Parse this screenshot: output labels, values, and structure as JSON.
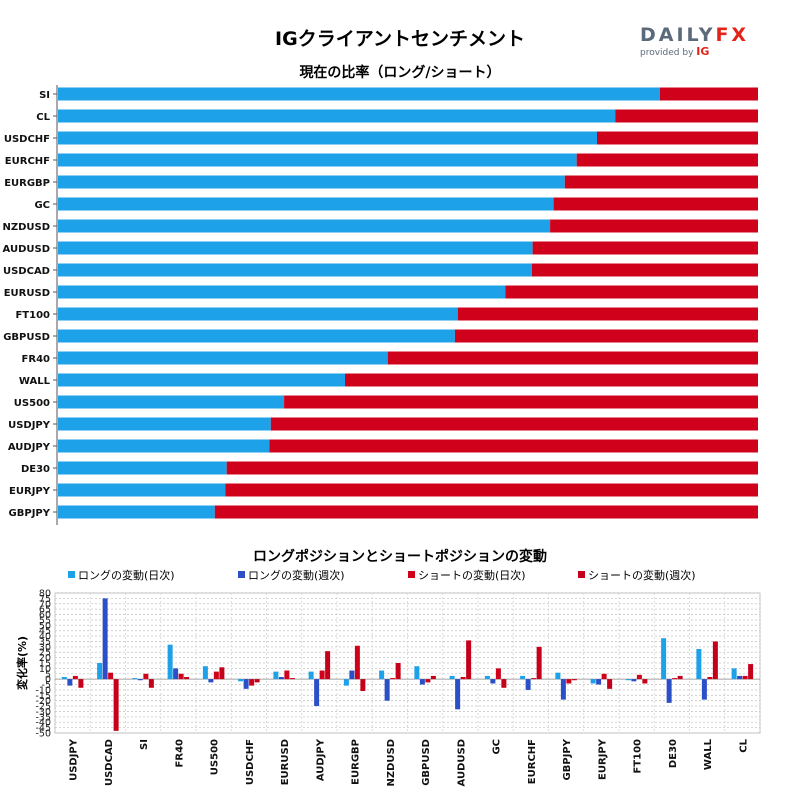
{
  "header": {
    "title": "IGクライアントセンチメント",
    "logo_word_a": "DAILY",
    "logo_word_b": "FX",
    "logo_sub": "provided by",
    "logo_brand": "IG"
  },
  "colors": {
    "long": "#1da1e8",
    "short": "#d0021b",
    "long_weekly": "#2b4fc7",
    "short_weekly": "#c4001a"
  },
  "chart_data": [
    {
      "type": "bar",
      "orientation": "horizontal-stacked",
      "title": "現在の比率（ロング/ショート）",
      "categories": [
        "SI",
        "CL",
        "USDCHF",
        "EURCHF",
        "EURGBP",
        "GC",
        "NZDUSD",
        "AUDUSD",
        "USDCAD",
        "EURUSD",
        "FT100",
        "GBPUSD",
        "FR40",
        "WALL",
        "US500",
        "USDJPY",
        "AUDJPY",
        "DE30",
        "EURJPY",
        "GBPJPY"
      ],
      "series": [
        {
          "name": "ロング",
          "values": [
            86,
            79.6,
            77,
            74.1,
            72.4,
            70.8,
            70.3,
            67.8,
            67.7,
            63.9,
            57.1,
            56.7,
            47.1,
            41,
            32.3,
            30.4,
            30.2,
            24.1,
            23.9,
            22.4
          ]
        },
        {
          "name": "ショート",
          "values": [
            14,
            20.4,
            23,
            25.9,
            27.6,
            29.2,
            29.7,
            32.2,
            32.3,
            36.1,
            42.9,
            43.3,
            52.9,
            59,
            67.7,
            69.6,
            69.8,
            75.9,
            76.1,
            77.6
          ]
        }
      ],
      "xlim": [
        0,
        100
      ]
    },
    {
      "type": "bar",
      "orientation": "vertical-grouped",
      "title": "ロングポジションとショートポジションの変動",
      "ylabel": "変化率(%)",
      "ylim": [
        -50,
        80
      ],
      "yticks": [
        80,
        75,
        70,
        65,
        60,
        55,
        50,
        45,
        40,
        35,
        30,
        25,
        20,
        15,
        10,
        5,
        0,
        -5,
        -10,
        -15,
        -20,
        -25,
        -30,
        -35,
        -40,
        -45,
        -50
      ],
      "categories": [
        "USDJPY",
        "USDCAD",
        "SI",
        "FR40",
        "US500",
        "USDCHF",
        "EURUSD",
        "AUDJPY",
        "EURGBP",
        "NZDUSD",
        "GBPUSD",
        "AUDUSD",
        "GC",
        "EURCHF",
        "GBPJPY",
        "EURJPY",
        "FT100",
        "DE30",
        "WALL",
        "CL"
      ],
      "series": [
        {
          "name": "ロングの変動(日次)",
          "values": [
            2,
            15,
            1,
            32,
            12,
            -2,
            7,
            7,
            -6,
            8,
            12,
            3,
            3,
            3,
            6,
            -4,
            -1,
            38,
            28,
            10
          ]
        },
        {
          "name": "ロングの変動(週次)",
          "values": [
            -6,
            75,
            -1,
            10,
            -3,
            -9,
            2,
            -25,
            8,
            -20,
            -5,
            -28,
            -4,
            -10,
            -19,
            -5,
            -2,
            -22,
            -19,
            3
          ]
        },
        {
          "name": "ショートの変動(日次)",
          "values": [
            3,
            6,
            5,
            5,
            7,
            -6,
            8,
            8,
            31,
            1,
            -3,
            2,
            10,
            1,
            -4,
            5,
            4,
            1,
            2,
            3
          ]
        },
        {
          "name": "ショートの変動(週次)",
          "values": [
            -8,
            -48,
            -8,
            2,
            11,
            -3,
            1,
            26,
            -11,
            15,
            3,
            36,
            -8,
            30,
            -1,
            -9,
            -4,
            3,
            35,
            14
          ]
        }
      ]
    }
  ]
}
